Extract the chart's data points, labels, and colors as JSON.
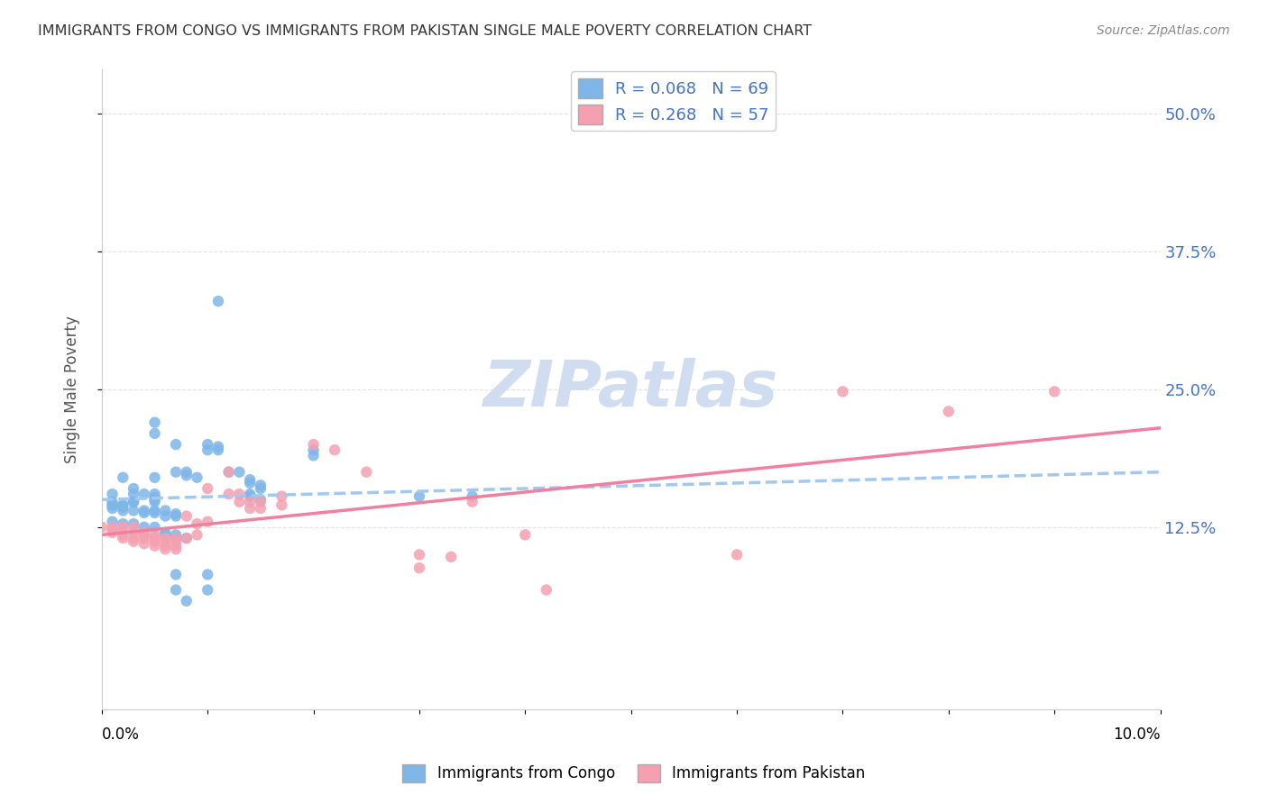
{
  "title": "IMMIGRANTS FROM CONGO VS IMMIGRANTS FROM PAKISTAN SINGLE MALE POVERTY CORRELATION CHART",
  "source": "Source: ZipAtlas.com",
  "ylabel": "Single Male Poverty",
  "ytick_labels": [
    "12.5%",
    "25.0%",
    "37.5%",
    "50.0%"
  ],
  "ytick_values": [
    0.125,
    0.25,
    0.375,
    0.5
  ],
  "xlim": [
    0.0,
    0.1
  ],
  "ylim": [
    -0.04,
    0.54
  ],
  "congo_color": "#7EB6E8",
  "pakistan_color": "#F4A0B0",
  "congo_R": 0.068,
  "congo_N": 69,
  "pakistan_R": 0.268,
  "pakistan_N": 57,
  "legend_label_congo": "Immigrants from Congo",
  "legend_label_pakistan": "Immigrants from Pakistan",
  "watermark": "ZIPatlas",
  "congo_scatter": [
    [
      0.002,
      0.17
    ],
    [
      0.005,
      0.22
    ],
    [
      0.005,
      0.21
    ],
    [
      0.007,
      0.2
    ],
    [
      0.005,
      0.17
    ],
    [
      0.005,
      0.155
    ],
    [
      0.005,
      0.148
    ],
    [
      0.003,
      0.16
    ],
    [
      0.003,
      0.155
    ],
    [
      0.004,
      0.155
    ],
    [
      0.005,
      0.152
    ],
    [
      0.005,
      0.15
    ],
    [
      0.003,
      0.148
    ],
    [
      0.003,
      0.148
    ],
    [
      0.002,
      0.145
    ],
    [
      0.001,
      0.148
    ],
    [
      0.001,
      0.145
    ],
    [
      0.001,
      0.142
    ],
    [
      0.001,
      0.155
    ],
    [
      0.001,
      0.145
    ],
    [
      0.002,
      0.145
    ],
    [
      0.002,
      0.14
    ],
    [
      0.002,
      0.143
    ],
    [
      0.003,
      0.14
    ],
    [
      0.004,
      0.138
    ],
    [
      0.004,
      0.14
    ],
    [
      0.005,
      0.138
    ],
    [
      0.005,
      0.14
    ],
    [
      0.007,
      0.135
    ],
    [
      0.007,
      0.137
    ],
    [
      0.006,
      0.135
    ],
    [
      0.006,
      0.14
    ],
    [
      0.007,
      0.175
    ],
    [
      0.008,
      0.175
    ],
    [
      0.008,
      0.172
    ],
    [
      0.009,
      0.17
    ],
    [
      0.01,
      0.195
    ],
    [
      0.01,
      0.2
    ],
    [
      0.011,
      0.198
    ],
    [
      0.011,
      0.195
    ],
    [
      0.011,
      0.33
    ],
    [
      0.012,
      0.175
    ],
    [
      0.013,
      0.175
    ],
    [
      0.014,
      0.168
    ],
    [
      0.014,
      0.165
    ],
    [
      0.015,
      0.163
    ],
    [
      0.015,
      0.16
    ],
    [
      0.014,
      0.155
    ],
    [
      0.014,
      0.153
    ],
    [
      0.015,
      0.15
    ],
    [
      0.02,
      0.195
    ],
    [
      0.02,
      0.19
    ],
    [
      0.001,
      0.13
    ],
    [
      0.002,
      0.128
    ],
    [
      0.003,
      0.128
    ],
    [
      0.004,
      0.125
    ],
    [
      0.005,
      0.125
    ],
    [
      0.006,
      0.12
    ],
    [
      0.006,
      0.118
    ],
    [
      0.007,
      0.118
    ],
    [
      0.007,
      0.115
    ],
    [
      0.008,
      0.115
    ],
    [
      0.007,
      0.082
    ],
    [
      0.01,
      0.082
    ],
    [
      0.007,
      0.068
    ],
    [
      0.008,
      0.058
    ],
    [
      0.01,
      0.068
    ],
    [
      0.03,
      0.153
    ],
    [
      0.035,
      0.153
    ]
  ],
  "pakistan_scatter": [
    [
      0.0,
      0.125
    ],
    [
      0.001,
      0.125
    ],
    [
      0.001,
      0.122
    ],
    [
      0.001,
      0.12
    ],
    [
      0.002,
      0.125
    ],
    [
      0.002,
      0.122
    ],
    [
      0.002,
      0.118
    ],
    [
      0.002,
      0.115
    ],
    [
      0.003,
      0.125
    ],
    [
      0.003,
      0.12
    ],
    [
      0.003,
      0.115
    ],
    [
      0.003,
      0.112
    ],
    [
      0.004,
      0.12
    ],
    [
      0.004,
      0.115
    ],
    [
      0.004,
      0.118
    ],
    [
      0.004,
      0.11
    ],
    [
      0.005,
      0.118
    ],
    [
      0.005,
      0.115
    ],
    [
      0.005,
      0.112
    ],
    [
      0.005,
      0.108
    ],
    [
      0.006,
      0.115
    ],
    [
      0.006,
      0.112
    ],
    [
      0.006,
      0.108
    ],
    [
      0.006,
      0.105
    ],
    [
      0.007,
      0.115
    ],
    [
      0.007,
      0.112
    ],
    [
      0.007,
      0.108
    ],
    [
      0.007,
      0.105
    ],
    [
      0.008,
      0.135
    ],
    [
      0.008,
      0.115
    ],
    [
      0.009,
      0.128
    ],
    [
      0.009,
      0.118
    ],
    [
      0.01,
      0.13
    ],
    [
      0.01,
      0.16
    ],
    [
      0.012,
      0.175
    ],
    [
      0.012,
      0.155
    ],
    [
      0.013,
      0.155
    ],
    [
      0.013,
      0.148
    ],
    [
      0.014,
      0.148
    ],
    [
      0.014,
      0.142
    ],
    [
      0.015,
      0.148
    ],
    [
      0.015,
      0.142
    ],
    [
      0.017,
      0.153
    ],
    [
      0.017,
      0.145
    ],
    [
      0.02,
      0.2
    ],
    [
      0.022,
      0.195
    ],
    [
      0.025,
      0.175
    ],
    [
      0.03,
      0.1
    ],
    [
      0.03,
      0.088
    ],
    [
      0.033,
      0.098
    ],
    [
      0.035,
      0.148
    ],
    [
      0.04,
      0.118
    ],
    [
      0.042,
      0.068
    ],
    [
      0.06,
      0.1
    ],
    [
      0.07,
      0.248
    ],
    [
      0.08,
      0.23
    ],
    [
      0.09,
      0.248
    ]
  ],
  "congo_trend_x": [
    0.0,
    0.1
  ],
  "congo_trend_y": [
    0.15,
    0.175
  ],
  "pakistan_trend_x": [
    0.0,
    0.1
  ],
  "pakistan_trend_y": [
    0.118,
    0.215
  ],
  "trend_color_congo": "#A0C8F0",
  "trend_color_pakistan": "#F080A0",
  "watermark_color": "#D0DCF0",
  "right_tick_color": "#4472C4",
  "grid_color": "#E0E0E8",
  "title_color": "#333333",
  "source_color": "#888888"
}
